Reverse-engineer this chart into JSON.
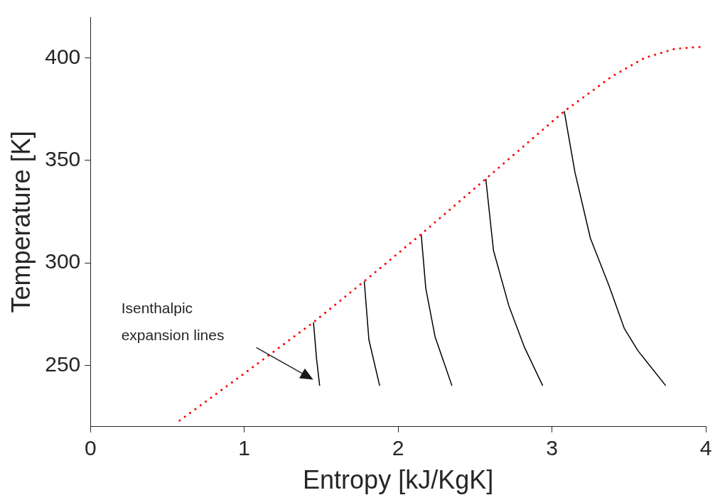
{
  "chart_data": {
    "type": "line",
    "xlabel": "Entropy [kJ/KgK]",
    "ylabel": "Temperature [K]",
    "xlim": [
      0,
      4
    ],
    "ylim": [
      220,
      420
    ],
    "xticks": [
      0,
      1,
      2,
      3,
      4
    ],
    "yticks": [
      250,
      300,
      350,
      400
    ],
    "grid": false,
    "legend": false,
    "marker": "none",
    "annotations": [
      "Isenthalpic expansion lines"
    ],
    "series": [
      {
        "color": "#ff0000",
        "line_style": "dotted",
        "x": [
          0.58,
          1.0,
          1.45,
          1.78,
          2.15,
          2.57,
          3.08,
          3.39,
          3.6,
          3.8,
          4.0
        ],
        "values": [
          223,
          246,
          271,
          291,
          314,
          341,
          374,
          391,
          400,
          404.5,
          405.6
        ]
      },
      {
        "color": "#000000",
        "line_style": "solid",
        "x": [
          1.45,
          1.47,
          1.49
        ],
        "values": [
          271,
          253,
          240
        ]
      },
      {
        "color": "#000000",
        "line_style": "solid",
        "x": [
          1.78,
          1.81,
          1.88
        ],
        "values": [
          291,
          262.5,
          240
        ]
      },
      {
        "color": "#000000",
        "line_style": "solid",
        "x": [
          2.15,
          2.18,
          2.24,
          2.35
        ],
        "values": [
          314,
          287.5,
          264,
          240
        ]
      },
      {
        "color": "#000000",
        "line_style": "solid",
        "x": [
          2.57,
          2.62,
          2.72,
          2.82,
          2.94
        ],
        "values": [
          341,
          306,
          279,
          259,
          240
        ]
      },
      {
        "color": "#000000",
        "line_style": "solid",
        "x": [
          3.08,
          3.15,
          3.25,
          3.37,
          3.47,
          3.56,
          3.74
        ],
        "values": [
          374,
          344,
          312,
          289,
          268,
          257,
          240
        ]
      }
    ]
  }
}
